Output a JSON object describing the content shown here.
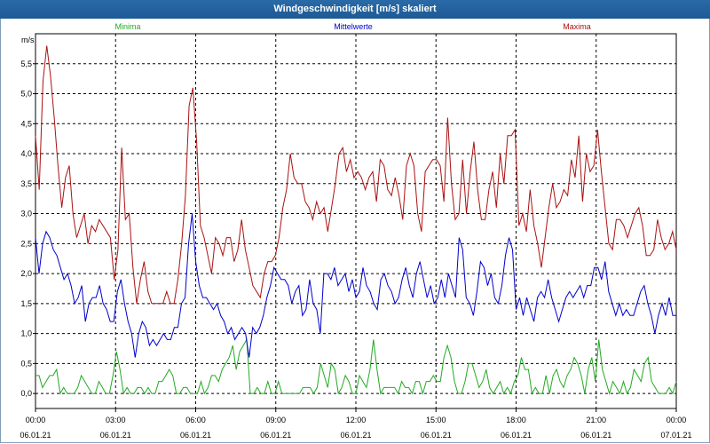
{
  "window": {
    "title": "Windgeschwindigkeit [m/s] skaliert"
  },
  "chart_data": {
    "type": "line",
    "title": "Windgeschwindigkeit [m/s] skaliert",
    "ylabel": "m/s",
    "ylim": [
      -0.25,
      6.0
    ],
    "yticks": [
      "0,0",
      "0,5",
      "1,0",
      "1,5",
      "2,0",
      "2,5",
      "3,0",
      "3,5",
      "4,0",
      "4,5",
      "5,0",
      "5,5"
    ],
    "yticks_values": [
      0,
      0.5,
      1,
      1.5,
      2,
      2.5,
      3,
      3.5,
      4,
      4.5,
      5,
      5.5
    ],
    "x_range_hours": [
      0,
      24
    ],
    "xticks": [
      {
        "time": "00:00",
        "date": "06.01.21"
      },
      {
        "time": "03:00",
        "date": "06.01.21"
      },
      {
        "time": "06:00",
        "date": "06.01.21"
      },
      {
        "time": "09:00",
        "date": "06.01.21"
      },
      {
        "time": "12:00",
        "date": "06.01.21"
      },
      {
        "time": "15:00",
        "date": "06.01.21"
      },
      {
        "time": "18:00",
        "date": "06.01.21"
      },
      {
        "time": "21:00",
        "date": "06.01.21"
      },
      {
        "time": "00:00",
        "date": "07.01.21"
      }
    ],
    "grid": true,
    "series": [
      {
        "name": "Minima",
        "color": "#22aa22",
        "values": [
          0.3,
          0.3,
          0.1,
          0.2,
          0.3,
          0.3,
          0.4,
          0.0,
          0.1,
          0.0,
          0.0,
          0.0,
          0.1,
          0.3,
          0.2,
          0.1,
          0.0,
          0.0,
          0.2,
          0.1,
          0.0,
          0.0,
          0.3,
          0.7,
          0.4,
          0.0,
          0.1,
          0.0,
          0.0,
          0.1,
          0.1,
          0.0,
          0.1,
          0.0,
          0.0,
          0.2,
          0.2,
          0.3,
          0.4,
          0.3,
          0.0,
          0.0,
          0.1,
          0.1,
          0.0,
          0.0,
          0.0,
          0.2,
          0.0,
          0.1,
          0.3,
          0.3,
          0.2,
          0.4,
          0.5,
          0.6,
          0.8,
          0.4,
          0.7,
          0.8,
          0.9,
          0.0,
          0.0,
          0.1,
          0.0,
          0.0,
          0.2,
          0.0,
          0.0,
          0.2,
          0.0,
          0.0,
          0.0,
          0.0,
          0.0,
          0.0,
          0.1,
          0.1,
          0.1,
          0.0,
          0.1,
          0.5,
          0.3,
          0.1,
          0.5,
          0.4,
          0.0,
          0.1,
          0.3,
          0.2,
          0.0,
          0.0,
          0.3,
          0.2,
          0.1,
          0.4,
          0.9,
          0.4,
          0.0,
          0.1,
          0.1,
          0.1,
          0.1,
          0.0,
          0.2,
          0.1,
          0.1,
          0.0,
          0.2,
          0.2,
          0.0,
          0.2,
          0.2,
          0.3,
          0.2,
          0.2,
          0.6,
          0.8,
          0.6,
          0.2,
          0.0,
          0.0,
          0.2,
          0.5,
          0.5,
          0.3,
          0.1,
          0.2,
          0.4,
          0.1,
          0.0,
          0.1,
          0.2,
          0.0,
          0.1,
          0.0,
          0.2,
          0.3,
          0.6,
          0.4,
          0.4,
          0.0,
          0.1,
          0.0,
          0.0,
          0.3,
          0.0,
          0.3,
          0.4,
          0.2,
          0.1,
          0.3,
          0.4,
          0.6,
          0.5,
          0.3,
          0.0,
          0.4,
          0.6,
          0.2,
          0.9,
          0.4,
          0.2,
          0.0,
          0.2,
          0.1,
          0.0,
          0.2,
          0.0,
          0.1,
          0.4,
          0.3,
          0.2,
          0.5,
          0.6,
          0.2,
          0.1,
          0.0,
          0.0,
          0.0,
          0.1,
          0.0,
          0.2
        ]
      },
      {
        "name": "Mittelwerte",
        "color": "#0000cc",
        "values": [
          2.6,
          2.0,
          2.5,
          2.7,
          2.6,
          2.4,
          2.3,
          2.1,
          1.9,
          2.0,
          1.8,
          1.5,
          1.6,
          1.8,
          1.2,
          1.5,
          1.6,
          1.6,
          1.8,
          1.5,
          1.4,
          1.2,
          1.2,
          1.7,
          1.9,
          1.5,
          1.2,
          1.0,
          0.6,
          1.0,
          1.2,
          1.1,
          0.8,
          0.9,
          0.8,
          0.9,
          1.0,
          0.9,
          0.9,
          1.1,
          1.1,
          1.5,
          1.6,
          2.5,
          3.0,
          2.2,
          1.8,
          1.6,
          1.6,
          1.5,
          1.4,
          1.5,
          1.3,
          1.2,
          1.0,
          1.1,
          0.9,
          1.0,
          1.1,
          1.0,
          0.6,
          1.1,
          1.0,
          1.1,
          1.3,
          1.6,
          1.8,
          2.1,
          2.0,
          1.9,
          1.9,
          1.8,
          1.5,
          1.7,
          1.8,
          1.3,
          1.4,
          1.9,
          1.5,
          1.4,
          1.0,
          2.0,
          2.0,
          1.9,
          2.1,
          1.8,
          1.9,
          2.0,
          1.7,
          1.9,
          1.6,
          1.7,
          2.1,
          1.8,
          1.7,
          1.5,
          1.4,
          1.9,
          2.0,
          1.8,
          1.7,
          1.5,
          1.6,
          1.9,
          2.1,
          1.8,
          1.6,
          2.0,
          2.2,
          1.9,
          1.6,
          1.8,
          1.5,
          1.6,
          1.9,
          1.6,
          2.0,
          1.8,
          1.6,
          2.6,
          2.4,
          1.6,
          1.5,
          1.3,
          1.7,
          2.2,
          2.1,
          1.8,
          2.0,
          1.6,
          1.5,
          1.8,
          2.3,
          2.6,
          2.4,
          1.4,
          1.6,
          1.3,
          1.6,
          1.4,
          1.2,
          1.6,
          1.7,
          1.6,
          1.9,
          1.6,
          1.4,
          1.2,
          1.4,
          1.6,
          1.7,
          1.6,
          1.7,
          1.8,
          1.6,
          1.8,
          1.8,
          2.1,
          2.1,
          1.9,
          2.2,
          1.7,
          1.5,
          1.3,
          1.5,
          1.3,
          1.4,
          1.3,
          1.3,
          1.5,
          1.7,
          1.8,
          1.5,
          1.3,
          1.0,
          1.3,
          1.5,
          1.3,
          1.6,
          1.3,
          1.3
        ]
      },
      {
        "name": "Maxima",
        "color": "#aa1111",
        "values": [
          4.3,
          3.4,
          5.2,
          5.8,
          5.3,
          4.6,
          3.8,
          3.1,
          3.6,
          3.8,
          3.0,
          2.6,
          2.8,
          3.0,
          2.5,
          2.8,
          2.7,
          2.9,
          2.8,
          2.7,
          2.6,
          1.9,
          2.4,
          4.1,
          2.9,
          3.0,
          2.1,
          1.5,
          1.9,
          2.2,
          1.7,
          1.5,
          1.5,
          1.5,
          1.5,
          1.7,
          1.5,
          1.5,
          1.9,
          2.5,
          3.3,
          4.8,
          5.1,
          4.2,
          2.8,
          2.6,
          2.3,
          2.0,
          2.6,
          2.5,
          2.3,
          2.6,
          2.6,
          2.2,
          2.4,
          2.9,
          2.4,
          2.1,
          1.8,
          1.7,
          1.6,
          2.0,
          2.2,
          2.2,
          2.3,
          2.6,
          3.1,
          3.4,
          4.0,
          3.6,
          3.5,
          3.5,
          3.2,
          3.1,
          2.9,
          3.2,
          3.0,
          3.1,
          2.7,
          3.1,
          3.5,
          4.0,
          4.1,
          3.7,
          3.9,
          3.6,
          3.7,
          3.6,
          3.4,
          3.6,
          3.7,
          3.2,
          3.9,
          3.8,
          3.4,
          3.3,
          3.6,
          3.3,
          2.9,
          3.8,
          4.0,
          3.8,
          3.0,
          2.7,
          3.7,
          3.8,
          3.9,
          3.9,
          3.8,
          3.2,
          4.6,
          3.5,
          2.9,
          3.0,
          3.9,
          3.0,
          3.7,
          4.2,
          3.4,
          2.9,
          2.9,
          3.4,
          3.7,
          3.1,
          4.0,
          3.5,
          4.3,
          4.3,
          4.4,
          2.8,
          3.0,
          2.7,
          3.4,
          2.8,
          2.5,
          2.1,
          2.6,
          3.1,
          3.5,
          3.1,
          3.2,
          3.4,
          3.3,
          3.9,
          3.6,
          4.3,
          3.2,
          4.0,
          3.7,
          3.8,
          4.4,
          3.7,
          3.1,
          2.5,
          2.4,
          2.9,
          2.9,
          2.8,
          2.6,
          2.8,
          3.0,
          3.1,
          2.8,
          2.3,
          2.3,
          2.4,
          2.9,
          2.6,
          2.4,
          2.5,
          2.7,
          2.4
        ]
      }
    ]
  }
}
